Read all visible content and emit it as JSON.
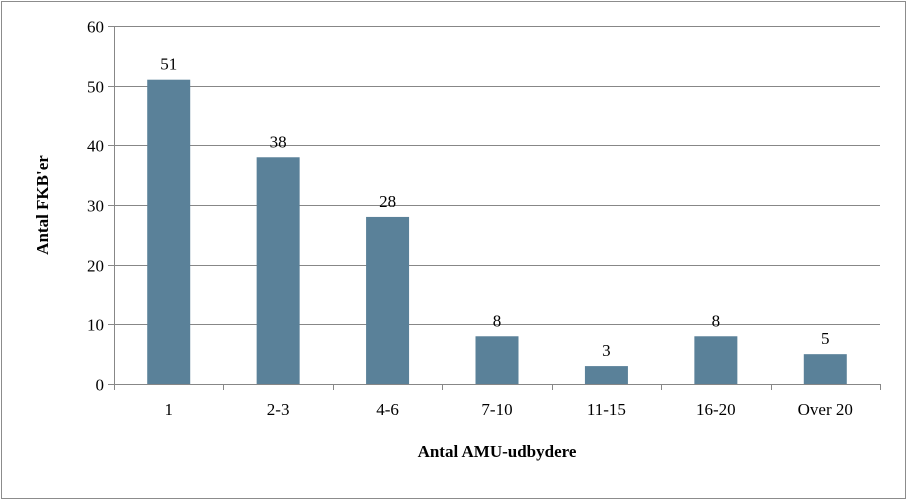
{
  "chart_data": {
    "type": "bar",
    "title": "",
    "xlabel": "Antal AMU-udbydere",
    "ylabel": "Antal FKB'er",
    "categories": [
      "1",
      "2-3",
      "4-6",
      "7-10",
      "11-15",
      "16-20",
      "Over 20"
    ],
    "values": [
      51,
      38,
      28,
      8,
      3,
      8,
      5
    ],
    "ylim": [
      0,
      60
    ],
    "yticks": [
      0,
      10,
      20,
      30,
      40,
      50,
      60
    ],
    "grid": true,
    "legend": "none",
    "colors": {
      "bar": "#5a8199",
      "grid": "#878787",
      "axis": "#878787",
      "text": "#000000"
    }
  }
}
